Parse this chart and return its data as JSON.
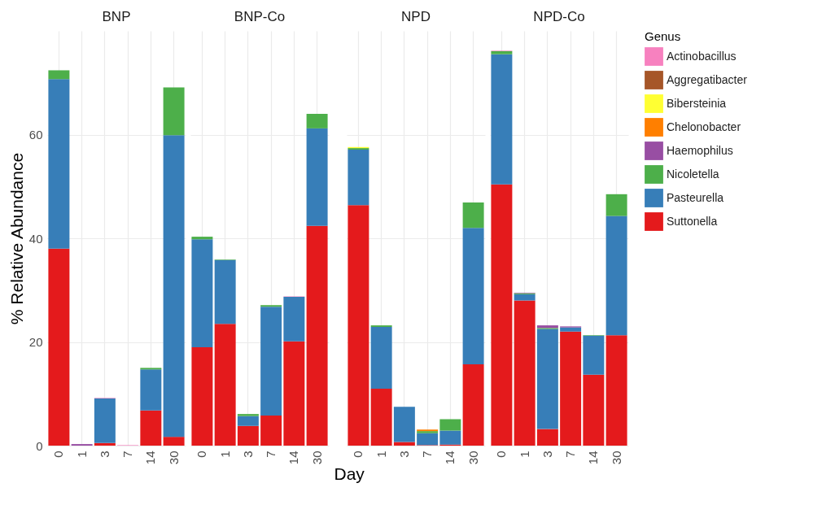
{
  "chart_data": [
    {
      "type": "bar",
      "title": "BNP",
      "ylabel": "% Relative Abundance",
      "categories": [
        "0",
        "1",
        "3",
        "7",
        "14",
        "30"
      ],
      "stacked": true,
      "ylim": [
        0,
        80
      ],
      "yticks": [
        0,
        20,
        40,
        60
      ],
      "grid": true,
      "series": [
        {
          "color": "#e41a1c",
          "values": [
            38.0,
            0,
            0.5,
            0,
            6.8,
            1.7
          ]
        },
        {
          "color": "#377eb8",
          "values": [
            32.7,
            0,
            8.6,
            0,
            7.9,
            58.2
          ]
        },
        {
          "color": "#4daf4a",
          "values": [
            1.7,
            0,
            0,
            0,
            0.3,
            9.2
          ]
        },
        {
          "color": "#984ea3",
          "values": [
            null,
            0.3,
            0,
            0,
            0,
            0
          ]
        },
        {
          "color": "#ff7f00",
          "values": [
            0,
            0,
            0,
            0,
            0,
            0
          ]
        },
        {
          "color": "#ffff33",
          "values": [
            0,
            0,
            0,
            0,
            0,
            0
          ]
        },
        {
          "color": "#a65628",
          "values": [
            0,
            0,
            0,
            0,
            0,
            0
          ]
        },
        {
          "color": "#f781bf",
          "values": [
            0,
            0,
            0.1,
            0.1,
            0,
            0
          ]
        }
      ]
    },
    {
      "type": "bar",
      "title": "BNP-Co",
      "categories": [
        "0",
        "1",
        "3",
        "7",
        "14",
        "30"
      ],
      "stacked": true,
      "ylim": [
        0,
        80
      ],
      "yticks": [
        0,
        20,
        40,
        60
      ],
      "grid": true,
      "tick_labels": "x",
      "series": [
        {
          "color": "#e41a1c",
          "values": [
            19.0,
            23.5,
            3.8,
            5.8,
            20.1,
            42.4
          ]
        },
        {
          "color": "#377eb8",
          "values": [
            20.8,
            12.3,
            1.9,
            21.0,
            8.6,
            18.8
          ]
        },
        {
          "color": "#4daf4a",
          "values": [
            0.5,
            0.1,
            0.4,
            0.3,
            0,
            2.8
          ]
        },
        {
          "color": "#984ea3",
          "values": [
            0,
            0,
            0,
            0,
            0,
            0
          ]
        },
        {
          "color": "#ff7f00",
          "values": [
            0,
            0,
            0,
            0,
            0,
            0
          ]
        },
        {
          "color": "#ffff33",
          "values": [
            0,
            0,
            0,
            0,
            0,
            0
          ]
        },
        {
          "color": "#a65628",
          "values": [
            0,
            0,
            0,
            0,
            0,
            0
          ]
        },
        {
          "color": "#f781bf",
          "values": [
            0,
            0,
            0,
            0,
            0.1,
            0
          ]
        }
      ]
    },
    {
      "type": "bar",
      "title": "NPD",
      "xlabel": "Day",
      "categories": [
        "0",
        "1",
        "3",
        "7",
        "14",
        "30"
      ],
      "stacked": true,
      "ylim": [
        0,
        80
      ],
      "yticks": [
        0,
        20,
        40,
        60
      ],
      "grid": true,
      "tick_labels": "x",
      "series": [
        {
          "color": "#e41a1c",
          "values": [
            46.4,
            11.0,
            0.7,
            0.1,
            0.2,
            15.7
          ]
        },
        {
          "color": "#377eb8",
          "values": [
            10.7,
            11.9,
            6.8,
            2.3,
            2.7,
            26.3
          ]
        },
        {
          "color": "#4daf4a",
          "values": [
            0.3,
            0.3,
            0,
            0.4,
            2.2,
            4.9
          ]
        },
        {
          "color": "#984ea3",
          "values": [
            0,
            0,
            0,
            0,
            0,
            0
          ]
        },
        {
          "color": "#ff7f00",
          "values": [
            0,
            0,
            0,
            0.3,
            0,
            0
          ]
        },
        {
          "color": "#ffff33",
          "values": [
            0.2,
            0,
            0,
            0,
            0,
            0
          ]
        },
        {
          "color": "#a65628",
          "values": [
            0,
            0,
            0,
            0,
            0,
            0
          ]
        },
        {
          "color": "#f781bf",
          "values": [
            0,
            0,
            0,
            0,
            0,
            0
          ]
        }
      ]
    },
    {
      "type": "bar",
      "title": "NPD-Co",
      "legend_title": "Genus",
      "categories": [
        "0",
        "1",
        "3",
        "7",
        "14",
        "30"
      ],
      "stacked": true,
      "ylim": [
        0,
        80
      ],
      "yticks": [
        0,
        20,
        40,
        60
      ],
      "grid": true,
      "legend": "right",
      "tick_labels": "x",
      "series": [
        {
          "name": "Suttonella",
          "color": "#e41a1c",
          "values": [
            50.4,
            28.0,
            3.2,
            22.0,
            13.7,
            21.3
          ]
        },
        {
          "name": "Pasteurella",
          "color": "#377eb8",
          "values": [
            25.1,
            1.2,
            19.3,
            0.8,
            7.5,
            23.0
          ]
        },
        {
          "name": "Nicoletella",
          "color": "#4daf4a",
          "values": [
            0.6,
            0.2,
            0.2,
            0,
            0.1,
            4.2
          ]
        },
        {
          "name": "Haemophilus",
          "color": "#984ea3",
          "values": [
            0,
            0.1,
            0.5,
            0.2,
            0,
            0
          ]
        },
        {
          "name": "Chelonobacter",
          "color": "#ff7f00",
          "values": [
            0,
            0,
            0,
            0,
            0,
            0
          ]
        },
        {
          "name": "Bibersteinia",
          "color": "#ffff33",
          "values": [
            0,
            0,
            0,
            0,
            0,
            0
          ]
        },
        {
          "name": "Aggregatibacter",
          "color": "#a65628",
          "values": [
            0,
            0,
            0,
            0,
            0,
            0
          ]
        },
        {
          "name": "Actinobacillus",
          "color": "#f781bf",
          "values": [
            0.1,
            0,
            0,
            0,
            0,
            0
          ]
        }
      ]
    }
  ]
}
